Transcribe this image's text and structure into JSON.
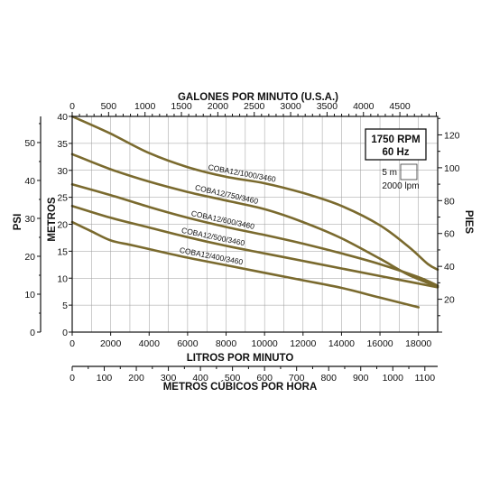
{
  "chart_data": {
    "type": "line",
    "title_top_axis": "GALONES POR MINUTO (U.S.A.)",
    "xlabel": "LITROS POR MINUTO",
    "xlabel_bottom2": "METROS CÚBICOS POR HORA",
    "ylabel_left_outer": "PSI",
    "ylabel_left_inner": "METROS",
    "ylabel_right": "PIES",
    "xlim": [
      0,
      19000
    ],
    "ylim": [
      0,
      40
    ],
    "grid": true,
    "x_ticks": [
      "0",
      "2000",
      "4000",
      "6000",
      "8000",
      "10000",
      "12000",
      "14000",
      "16000",
      "18000"
    ],
    "x_values": [
      0,
      2000,
      4000,
      6000,
      8000,
      10000,
      12000,
      14000,
      16000,
      18000
    ],
    "top_ticks": [
      "0",
      "500",
      "1000",
      "1500",
      "2000",
      "2500",
      "3000",
      "3500",
      "4000",
      "4500"
    ],
    "top_values": [
      0,
      500,
      1000,
      1500,
      2000,
      2500,
      3000,
      3500,
      4000,
      4500
    ],
    "bottom2_ticks": [
      "0",
      "100",
      "200",
      "300",
      "400",
      "500",
      "600",
      "700",
      "800",
      "900",
      "1000",
      "1100"
    ],
    "bottom2_values": [
      0,
      100,
      200,
      300,
      400,
      500,
      600,
      700,
      800,
      900,
      1000,
      1100
    ],
    "metros_ticks": [
      "0",
      "5",
      "10",
      "15",
      "20",
      "25",
      "30",
      "35",
      "40"
    ],
    "metros_values": [
      0,
      5,
      10,
      15,
      20,
      25,
      30,
      35,
      40
    ],
    "psi_ticks": [
      "0",
      "10",
      "20",
      "30",
      "40",
      "50"
    ],
    "psi_values": [
      0,
      10,
      20,
      30,
      40,
      50
    ],
    "pies_ticks": [
      "20",
      "40",
      "60",
      "80",
      "100",
      "120"
    ],
    "pies_values": [
      20,
      40,
      60,
      80,
      100,
      120
    ],
    "series": [
      {
        "name": "COBA12/1000/3460",
        "x": [
          0,
          2000,
          4000,
          6000,
          8000,
          10000,
          12000,
          14000,
          16000,
          17500,
          18500,
          19000
        ],
        "y": [
          40,
          36.8,
          33.2,
          30.6,
          28.8,
          27.6,
          25.8,
          23.4,
          19.8,
          15.8,
          12.6,
          11.6
        ]
      },
      {
        "name": "COBA12/750/3460",
        "x": [
          0,
          2000,
          4000,
          6000,
          8000,
          10000,
          12000,
          14000,
          16000,
          17500,
          19000
        ],
        "y": [
          33,
          30.2,
          27.9,
          26,
          24.4,
          22.8,
          20.4,
          17.4,
          13.6,
          10.6,
          8.4
        ]
      },
      {
        "name": "COBA12/600/3460",
        "x": [
          0,
          2000,
          4000,
          6000,
          8000,
          10000,
          12000,
          14000,
          16000,
          18000,
          19000
        ],
        "y": [
          27.4,
          25.4,
          23.2,
          21.2,
          19.5,
          18,
          16.4,
          14.6,
          12.6,
          10.2,
          8.6
        ]
      },
      {
        "name": "COBA12/500/3460",
        "x": [
          0,
          2000,
          4000,
          6000,
          8000,
          10000,
          12000,
          14000,
          16000,
          18000,
          19000
        ],
        "y": [
          23.4,
          21.2,
          19.4,
          17.6,
          16,
          14.6,
          13.2,
          11.8,
          10.4,
          9,
          8.3
        ]
      },
      {
        "name": "COBA12/400/3460",
        "x": [
          0,
          1000,
          2000,
          3000,
          4000,
          6000,
          8000,
          10000,
          12000,
          14000,
          16000,
          18000
        ],
        "y": [
          20.4,
          18.7,
          17,
          16.2,
          15.4,
          13.8,
          12.4,
          11,
          9.6,
          8.2,
          6.4,
          4.6
        ]
      }
    ],
    "legend": {
      "rpm": "1750 RPM",
      "hz": "60 Hz",
      "scale_y": "5 m",
      "scale_x": "2000 lpm"
    }
  },
  "colors": {
    "curve": "#7a6a2e",
    "axis": "#111111",
    "grid": "#9a9a9a"
  }
}
